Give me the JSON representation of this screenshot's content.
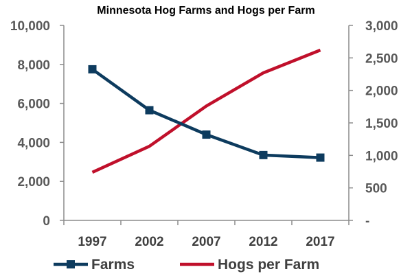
{
  "chart_data": {
    "type": "line",
    "title": "Minnesota Hog Farms and Hogs per Farm",
    "categories": [
      "1997",
      "2002",
      "2007",
      "2012",
      "2017"
    ],
    "y_left": {
      "min": 0,
      "max": 10000,
      "ticks": [
        0,
        2000,
        4000,
        6000,
        8000,
        10000
      ],
      "tick_labels": [
        "0",
        "2,000",
        "4,000",
        "6,000",
        "8,000",
        "10,000"
      ]
    },
    "y_right": {
      "min": 0,
      "max": 3000,
      "ticks": [
        0,
        500,
        1000,
        1500,
        2000,
        2500,
        3000
      ],
      "tick_labels": [
        "-",
        "500",
        "1,000",
        "1,500",
        "2,000",
        "2,500",
        "3,000"
      ]
    },
    "series": [
      {
        "name": "Farms",
        "axis": "left",
        "color": "#0d3b5e",
        "marker": "square",
        "values": [
          7750,
          5650,
          4400,
          3350,
          3220
        ]
      },
      {
        "name": "Hogs per Farm",
        "axis": "right",
        "color": "#c0102b",
        "marker": "none",
        "values": [
          740,
          1140,
          1760,
          2270,
          2620
        ]
      }
    ],
    "legend_position": "bottom",
    "grid": false
  }
}
